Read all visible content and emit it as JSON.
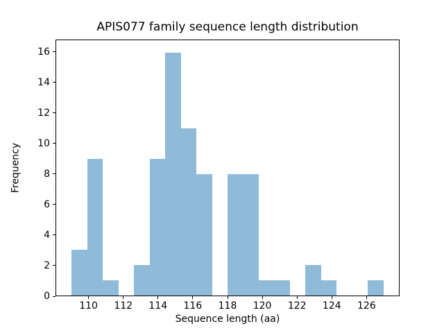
{
  "figure": {
    "background": "#ffffff",
    "spine_color": "#000000",
    "text_color": "#000000"
  },
  "chart_data": {
    "type": "bar",
    "chart_kind": "histogram",
    "title": "APIS077 family sequence length distribution",
    "xlabel": "Sequence length (aa)",
    "ylabel": "Frequency",
    "bar_color": "#8fbbd9",
    "bin_edges": [
      109.0,
      109.9,
      110.8,
      111.7,
      112.6,
      113.5,
      114.4,
      115.3,
      116.2,
      117.1,
      118.0,
      118.9,
      119.8,
      120.7,
      121.6,
      122.5,
      123.4,
      124.3,
      125.2,
      126.1,
      127.0
    ],
    "frequencies": [
      3,
      9,
      1,
      0,
      2,
      9,
      16,
      11,
      8,
      0,
      8,
      8,
      1,
      1,
      0,
      2,
      1,
      0,
      0,
      1
    ],
    "xlim": [
      108.1,
      127.9
    ],
    "ylim": [
      0,
      16.8
    ],
    "x_ticks": [
      110,
      112,
      114,
      116,
      118,
      120,
      122,
      124,
      126
    ],
    "y_ticks": [
      0,
      2,
      4,
      6,
      8,
      10,
      12,
      14,
      16
    ],
    "grid": false,
    "legend_position": "none"
  }
}
